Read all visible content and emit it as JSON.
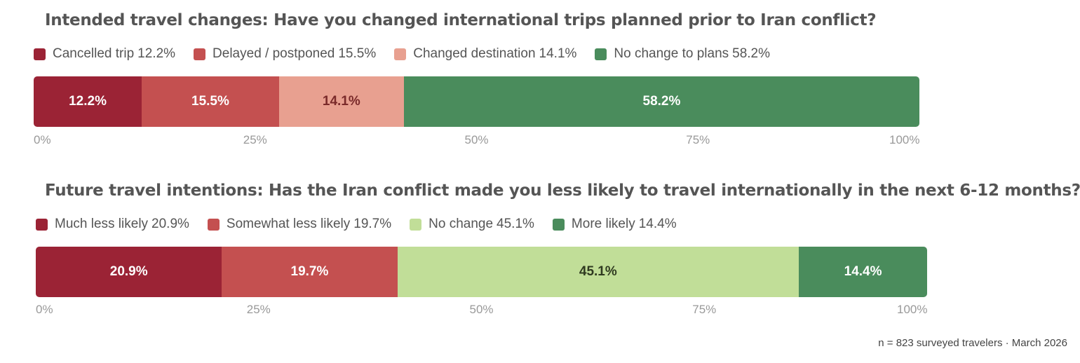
{
  "chart_data": [
    {
      "type": "bar",
      "orientation": "horizontal-stacked",
      "title": "Intended travel changes: Have you changed international trips planned prior to Iran conflict?",
      "categories": [
        "Cancelled trip",
        "Delayed / postponed",
        "Changed destination",
        "No change to plans"
      ],
      "values": [
        12.2,
        15.5,
        14.1,
        58.2
      ],
      "data_labels": [
        "12.2%",
        "15.5%",
        "14.1%",
        "58.2%"
      ],
      "colors": [
        "#9b2335",
        "#c45050",
        "#e8a090",
        "#4a8c5c"
      ],
      "label_colors": [
        "#ffffff",
        "#ffffff",
        "#7a2a2a",
        "#ffffff"
      ],
      "xlim": [
        0,
        100
      ],
      "ticks": [
        0,
        25,
        50,
        75,
        100
      ],
      "tick_labels": [
        "0%",
        "25%",
        "50%",
        "75%",
        "100%"
      ],
      "legend_position": "top-left"
    },
    {
      "type": "bar",
      "orientation": "horizontal-stacked",
      "title": "Future travel intentions: Has the Iran conflict made you less likely to travel internationally in the next 6-12 months?",
      "categories": [
        "Much less likely",
        "Somewhat less likely",
        "No change",
        "More likely"
      ],
      "values": [
        20.9,
        19.7,
        45.1,
        14.4
      ],
      "data_labels": [
        "20.9%",
        "19.7%",
        "45.1%",
        "14.4%"
      ],
      "colors": [
        "#9b2335",
        "#c45050",
        "#c1de98",
        "#4a8c5c"
      ],
      "label_colors": [
        "#ffffff",
        "#ffffff",
        "#2f3a20",
        "#ffffff"
      ],
      "xlim": [
        0,
        100
      ],
      "ticks": [
        0,
        25,
        50,
        75,
        100
      ],
      "tick_labels": [
        "0%",
        "25%",
        "50%",
        "75%",
        "100%"
      ],
      "legend_position": "top-left"
    }
  ],
  "legend_values": [
    [
      "12.2%",
      "15.5%",
      "14.1%",
      "58.2%"
    ],
    [
      "20.9%",
      "19.7%",
      "45.1%",
      "14.4%"
    ]
  ],
  "footnote": "n = 823 surveyed travelers · March 2026"
}
